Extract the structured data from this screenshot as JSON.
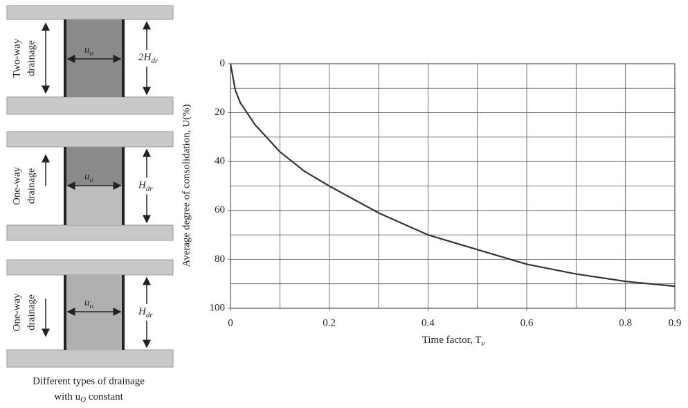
{
  "diagram": {
    "panels": [
      {
        "drainage": [
          "Two-way",
          "drainage"
        ],
        "pressure": {
          "main": "u",
          "sub": "o"
        },
        "thickness": {
          "main": "2H",
          "sub": "dr"
        }
      },
      {
        "drainage": [
          "One-way",
          "drainage"
        ],
        "pressure": {
          "main": "u",
          "sub": "o"
        },
        "thickness": {
          "main": "H",
          "sub": "dr"
        }
      },
      {
        "drainage": [
          "One-way",
          "drainage"
        ],
        "pressure": {
          "main": "u",
          "sub": "o"
        },
        "thickness": {
          "main": "H",
          "sub": "dr"
        }
      }
    ],
    "caption": {
      "line1": "Different types of drainage",
      "line2": {
        "main": "with u",
        "sub": "O",
        "rest": " constant"
      }
    }
  },
  "chart_data": {
    "type": "line",
    "x_label": {
      "main": "Time factor, T",
      "sub": "v"
    },
    "y_label": "Average degree of consolidation, U(%)",
    "x": [
      0,
      0.01,
      0.02,
      0.05,
      0.1,
      0.15,
      0.2,
      0.3,
      0.4,
      0.5,
      0.6,
      0.7,
      0.8,
      0.9
    ],
    "series": [
      {
        "color": "#333333",
        "values": [
          0,
          11,
          16,
          25,
          36,
          44,
          50,
          61,
          70,
          76,
          82,
          86,
          89,
          91
        ]
      }
    ],
    "xlim": [
      0,
      0.9
    ],
    "ylim": [
      0,
      100
    ],
    "y_inverted": true,
    "xticks": [
      0,
      0.2,
      0.4,
      0.6,
      0.8,
      0.9
    ],
    "yticks": [
      0,
      20,
      40,
      60,
      80,
      100
    ],
    "xgrid": [
      0.1,
      0.3,
      0.5,
      0.7
    ],
    "ygrid": [
      10,
      30,
      50,
      70,
      90
    ],
    "grid": true
  }
}
